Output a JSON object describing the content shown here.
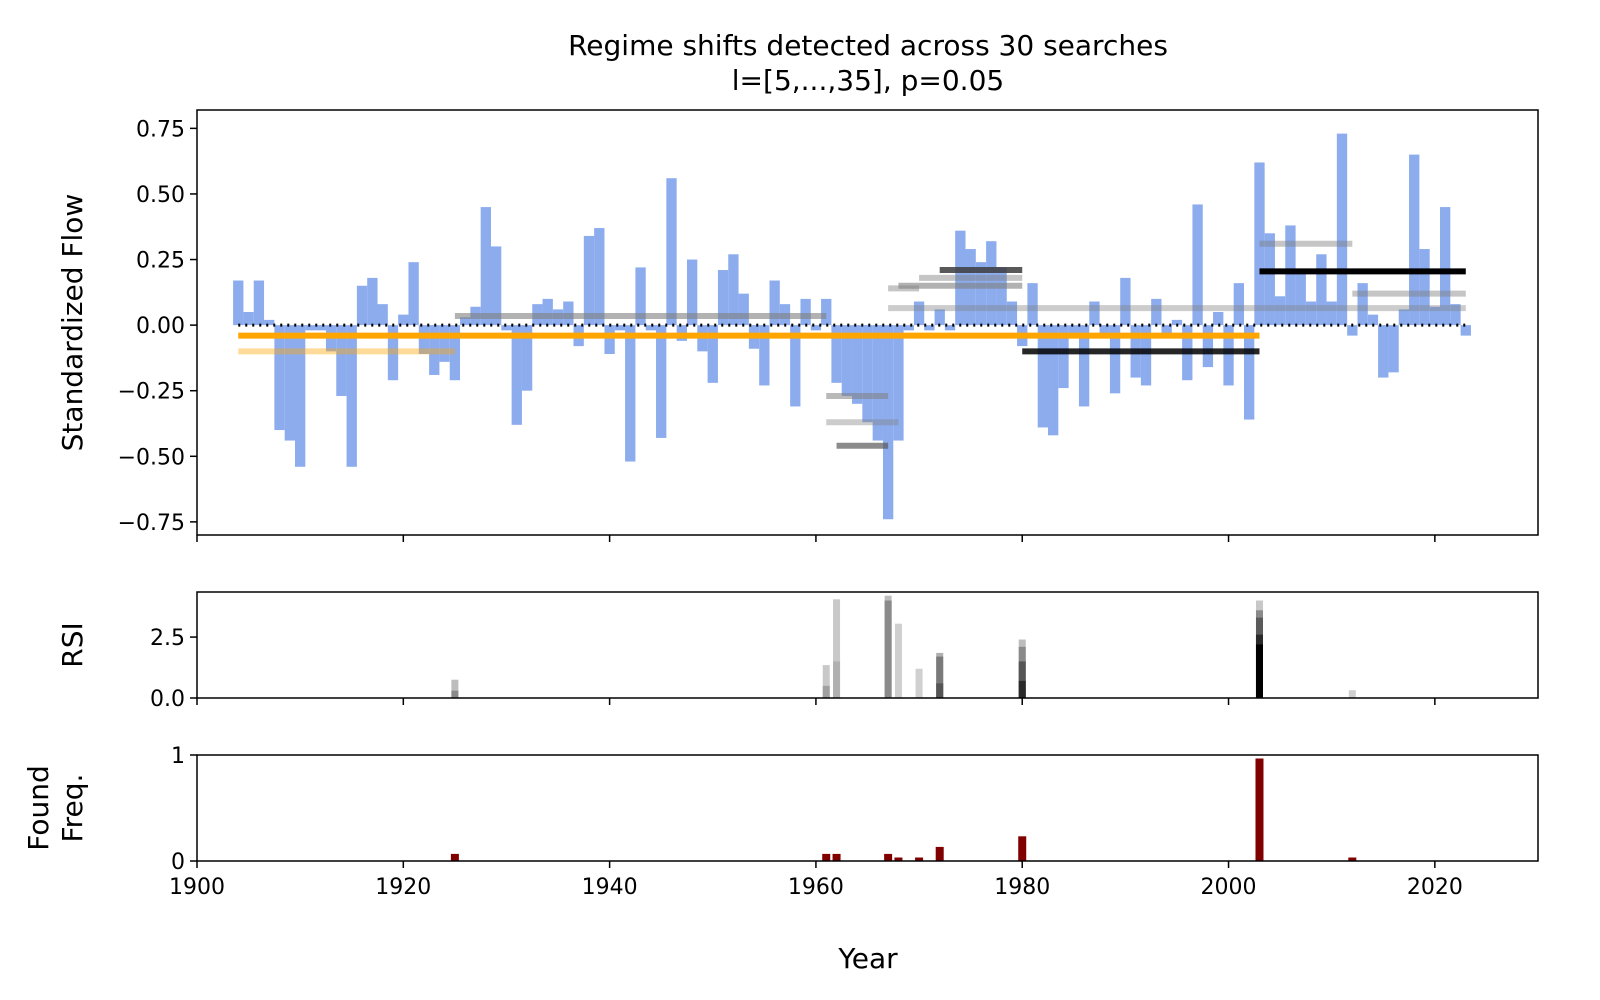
{
  "figure": {
    "title_line1": "Regime shifts detected across 30 searches",
    "title_line2": "l=[5,...,35], p=0.05",
    "xlabel": "Year"
  },
  "chart_data": [
    {
      "type": "bar",
      "panel": "flow",
      "ylabel": "Standardized Flow",
      "xlim": [
        1900,
        2030
      ],
      "ylim": [
        -0.8,
        0.82
      ],
      "yticks": [
        0.75,
        0.5,
        0.25,
        0.0,
        -0.25,
        -0.5,
        -0.75
      ],
      "ytick_labels": [
        "0.75",
        "0.50",
        "0.25",
        "0.00",
        "−0.25",
        "−0.50",
        "−0.75"
      ],
      "bar_color": "#8cacee",
      "start_year": 1904,
      "values": [
        0.17,
        0.05,
        0.17,
        0.02,
        -0.4,
        -0.44,
        -0.54,
        -0.02,
        -0.02,
        -0.1,
        -0.27,
        -0.54,
        0.15,
        0.18,
        0.08,
        -0.21,
        0.04,
        0.24,
        -0.11,
        -0.19,
        -0.14,
        -0.21,
        0.03,
        0.07,
        0.45,
        0.3,
        -0.02,
        -0.38,
        -0.25,
        0.08,
        0.1,
        0.06,
        0.09,
        -0.08,
        0.34,
        0.37,
        -0.11,
        -0.02,
        -0.52,
        0.22,
        -0.02,
        -0.43,
        0.56,
        -0.06,
        0.25,
        -0.1,
        -0.22,
        0.21,
        0.27,
        0.12,
        -0.09,
        -0.23,
        0.17,
        0.08,
        -0.31,
        0.1,
        -0.02,
        0.1,
        -0.22,
        -0.27,
        -0.3,
        -0.37,
        -0.44,
        -0.74,
        -0.44,
        -0.02,
        0.09,
        -0.02,
        0.06,
        -0.02,
        0.36,
        0.29,
        0.24,
        0.32,
        0.22,
        0.09,
        -0.08,
        0.16,
        -0.39,
        -0.42,
        -0.24,
        -0.03,
        -0.31,
        0.09,
        -0.03,
        -0.26,
        0.18,
        -0.2,
        -0.23,
        0.1,
        -0.04,
        0.02,
        -0.21,
        0.46,
        -0.16,
        0.05,
        -0.23,
        0.16,
        -0.36,
        0.62,
        0.35,
        0.11,
        0.38,
        0.21,
        0.09,
        0.27,
        0.09,
        0.73,
        -0.04,
        0.16,
        0.04,
        -0.2,
        -0.18,
        0.06,
        0.65,
        0.29,
        0.07,
        0.45,
        0.08,
        -0.04
      ],
      "baseline": {
        "value": 0.0,
        "start": 1904,
        "end": 2023,
        "style": "dotted",
        "color": "#000000"
      },
      "regime_means": [
        {
          "start": 1904,
          "end": 2003,
          "value": -0.04,
          "color": "#ffa500",
          "opacity": 1.0
        },
        {
          "start": 1904,
          "end": 1925,
          "value": -0.1,
          "color": "#ffa500",
          "opacity": 0.4
        },
        {
          "start": 1925,
          "end": 1961,
          "value": 0.035,
          "color": "#7f7f7f",
          "opacity": 0.6
        },
        {
          "start": 1961,
          "end": 1967,
          "value": -0.27,
          "color": "#7f7f7f",
          "opacity": 0.55
        },
        {
          "start": 1961,
          "end": 1968,
          "value": -0.37,
          "color": "#7f7f7f",
          "opacity": 0.4
        },
        {
          "start": 1962,
          "end": 1967,
          "value": -0.46,
          "color": "#5a5a5a",
          "opacity": 0.7
        },
        {
          "start": 1967,
          "end": 1970,
          "value": 0.14,
          "color": "#7f7f7f",
          "opacity": 0.45
        },
        {
          "start": 1970,
          "end": 1980,
          "value": 0.18,
          "color": "#7f7f7f",
          "opacity": 0.45
        },
        {
          "start": 1968,
          "end": 1980,
          "value": 0.15,
          "color": "#7f7f7f",
          "opacity": 0.6
        },
        {
          "start": 1972,
          "end": 1980,
          "value": 0.21,
          "color": "#3c3c3c",
          "opacity": 0.85
        },
        {
          "start": 1967,
          "end": 2003,
          "value": 0.065,
          "color": "#7f7f7f",
          "opacity": 0.4
        },
        {
          "start": 1980,
          "end": 2003,
          "value": -0.1,
          "color": "#000000",
          "opacity": 0.85
        },
        {
          "start": 2003,
          "end": 2023,
          "value": 0.065,
          "color": "#7f7f7f",
          "opacity": 0.4
        },
        {
          "start": 2003,
          "end": 2012,
          "value": 0.31,
          "color": "#7f7f7f",
          "opacity": 0.45
        },
        {
          "start": 2012,
          "end": 2023,
          "value": 0.12,
          "color": "#7f7f7f",
          "opacity": 0.45
        },
        {
          "start": 2003,
          "end": 2023,
          "value": 0.205,
          "color": "#000000",
          "opacity": 1.0
        }
      ]
    },
    {
      "type": "bar",
      "panel": "rsi",
      "ylabel": "RSI",
      "xlim": [
        1900,
        2030
      ],
      "ylim": [
        0,
        4.35
      ],
      "yticks": [
        0.0,
        2.5
      ],
      "ytick_labels": [
        "0.0",
        "2.5"
      ],
      "bars": [
        {
          "year": 1925,
          "value": 0.75,
          "color": "#bdbdbd"
        },
        {
          "year": 1925,
          "value": 0.3,
          "color": "#8a8a8a"
        },
        {
          "year": 1961,
          "value": 1.35,
          "color": "#c8c8c8"
        },
        {
          "year": 1961,
          "value": 0.5,
          "color": "#a0a0a0"
        },
        {
          "year": 1962,
          "value": 4.05,
          "color": "#c8c8c8"
        },
        {
          "year": 1962,
          "value": 1.5,
          "color": "#b0b0b0"
        },
        {
          "year": 1967,
          "value": 4.2,
          "color": "#bdbdbd"
        },
        {
          "year": 1967,
          "value": 4.0,
          "color": "#8a8a8a"
        },
        {
          "year": 1968,
          "value": 3.05,
          "color": "#cfcfcf"
        },
        {
          "year": 1970,
          "value": 1.2,
          "color": "#d0d0d0"
        },
        {
          "year": 1972,
          "value": 1.85,
          "color": "#b0b0b0"
        },
        {
          "year": 1972,
          "value": 1.7,
          "color": "#7a7a7a"
        },
        {
          "year": 1972,
          "value": 0.6,
          "color": "#555555"
        },
        {
          "year": 1980,
          "value": 2.4,
          "color": "#bdbdbd"
        },
        {
          "year": 1980,
          "value": 2.1,
          "color": "#8a8a8a"
        },
        {
          "year": 1980,
          "value": 1.5,
          "color": "#555555"
        },
        {
          "year": 1980,
          "value": 0.7,
          "color": "#2a2a2a"
        },
        {
          "year": 2003,
          "value": 4.0,
          "color": "#c8c8c8"
        },
        {
          "year": 2003,
          "value": 3.6,
          "color": "#8a8a8a"
        },
        {
          "year": 2003,
          "value": 3.3,
          "color": "#5a5a5a"
        },
        {
          "year": 2003,
          "value": 2.6,
          "color": "#2a2a2a"
        },
        {
          "year": 2003,
          "value": 2.2,
          "color": "#000000"
        },
        {
          "year": 2012,
          "value": 0.32,
          "color": "#d0d0d0"
        }
      ]
    },
    {
      "type": "bar",
      "panel": "found_freq",
      "ylabel": "Found\nFreq.",
      "ylabel_lines": [
        "Found",
        "Freq."
      ],
      "xlim": [
        1900,
        2030
      ],
      "ylim": [
        0,
        1.0
      ],
      "yticks": [
        0,
        1
      ],
      "ytick_labels": [
        "0",
        "1"
      ],
      "xticks": [
        1900,
        1920,
        1940,
        1960,
        1980,
        2000,
        2020
      ],
      "xtick_labels": [
        "1900",
        "1920",
        "1940",
        "1960",
        "1980",
        "2000",
        "2020"
      ],
      "bar_color": "#800000",
      "bars": [
        {
          "year": 1925,
          "value": 0.067
        },
        {
          "year": 1961,
          "value": 0.067
        },
        {
          "year": 1962,
          "value": 0.067
        },
        {
          "year": 1967,
          "value": 0.067
        },
        {
          "year": 1968,
          "value": 0.033
        },
        {
          "year": 1970,
          "value": 0.033
        },
        {
          "year": 1972,
          "value": 0.133
        },
        {
          "year": 1980,
          "value": 0.233
        },
        {
          "year": 2003,
          "value": 0.967
        },
        {
          "year": 2012,
          "value": 0.033
        }
      ]
    }
  ]
}
